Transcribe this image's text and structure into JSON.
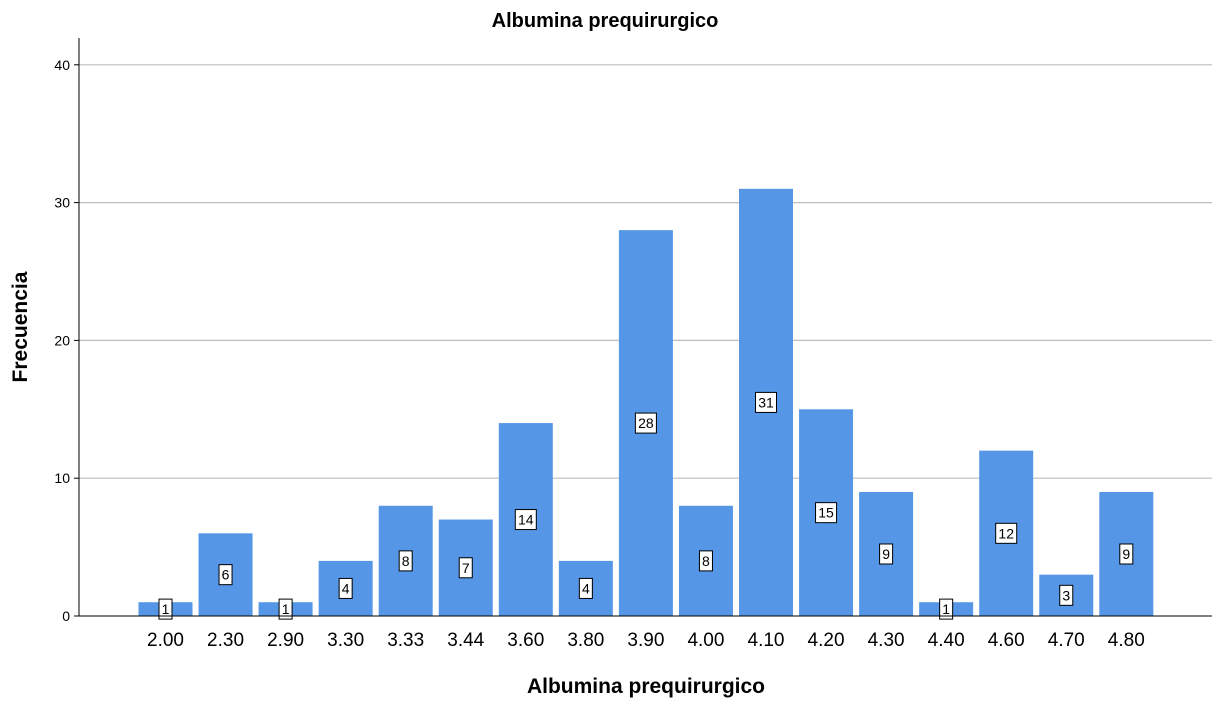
{
  "chart_data": {
    "type": "bar",
    "title": "Albumina prequirurgico",
    "xlabel": "Albumina prequirurgico",
    "ylabel": "Frecuencia",
    "categories": [
      "2.00",
      "2.30",
      "2.90",
      "3.30",
      "3.33",
      "3.44",
      "3.60",
      "3.80",
      "3.90",
      "4.00",
      "4.10",
      "4.20",
      "4.30",
      "4.40",
      "4.60",
      "4.70",
      "4.80"
    ],
    "values": [
      1,
      6,
      1,
      4,
      8,
      7,
      14,
      4,
      28,
      8,
      31,
      15,
      9,
      1,
      12,
      3,
      9
    ],
    "ylim": [
      0,
      42
    ],
    "yticks": [
      "0",
      "10",
      "20",
      "30",
      "40"
    ],
    "grid": true,
    "data_labels": true,
    "colors": {
      "bar": "#5596E6",
      "grid": "#BDBDBD",
      "axis": "#000000",
      "label_bg": "#FFFFFF"
    }
  }
}
